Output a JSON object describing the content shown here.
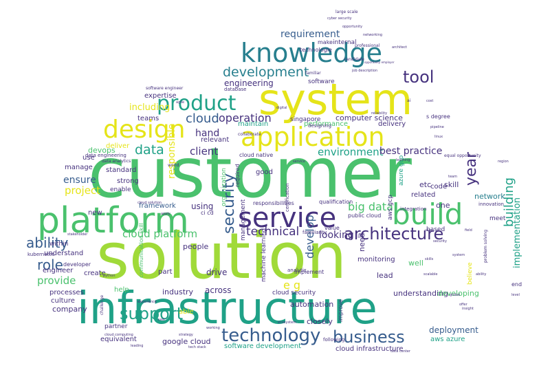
{
  "palette": {
    "lime": "#a0da39",
    "yellow": "#e5e419",
    "green": "#4ac16d",
    "mint": "#1fa187",
    "teal": "#277f8e",
    "blue": "#365c8d",
    "indigo": "#46327e",
    "purple": "#440154"
  },
  "words": [
    {
      "id": "customer",
      "text": "customer",
      "color": "green"
    },
    {
      "id": "solution",
      "text": "solution",
      "color": "lime"
    },
    {
      "id": "infrastructure",
      "text": "infrastructure",
      "color": "mint"
    },
    {
      "id": "platform",
      "text": "platform",
      "color": "green"
    },
    {
      "id": "system",
      "text": "system",
      "color": "yellow"
    },
    {
      "id": "knowledge",
      "text": "knowledge",
      "color": "teal"
    },
    {
      "id": "application",
      "text": "application",
      "color": "yellow"
    },
    {
      "id": "service",
      "text": "service",
      "color": "indigo"
    },
    {
      "id": "build",
      "text": "build",
      "color": "green"
    },
    {
      "id": "design",
      "text": "design",
      "color": "yellow"
    },
    {
      "id": "product",
      "text": "product",
      "color": "mint"
    },
    {
      "id": "technology",
      "text": "technology",
      "color": "blue"
    },
    {
      "id": "support",
      "text": "support",
      "color": "mint"
    },
    {
      "id": "business",
      "text": "business",
      "color": "blue"
    },
    {
      "id": "architecture",
      "text": "architecture",
      "color": "indigo"
    },
    {
      "id": "security",
      "text": "security",
      "color": "blue"
    },
    {
      "id": "ability",
      "text": "ability",
      "color": "blue"
    },
    {
      "id": "role",
      "text": "role",
      "color": "blue"
    },
    {
      "id": "development",
      "text": "development",
      "color": "teal"
    },
    {
      "id": "tool",
      "text": "tool",
      "color": "indigo"
    },
    {
      "id": "cloud",
      "text": "cloud",
      "color": "blue"
    },
    {
      "id": "data",
      "text": "data",
      "color": "mint"
    },
    {
      "id": "operation",
      "text": "operation",
      "color": "indigo"
    },
    {
      "id": "year",
      "text": "year",
      "color": "indigo"
    },
    {
      "id": "building",
      "text": "building",
      "color": "mint"
    },
    {
      "id": "technical",
      "text": "technical",
      "color": "indigo"
    },
    {
      "id": "requirement",
      "text": "requirement",
      "color": "blue"
    },
    {
      "id": "environment",
      "text": "environment",
      "color": "mint"
    },
    {
      "id": "best_practice",
      "text": "best practice",
      "color": "indigo"
    },
    {
      "id": "big_data",
      "text": "big data",
      "color": "green"
    },
    {
      "id": "ensure",
      "text": "ensure",
      "color": "blue"
    },
    {
      "id": "project",
      "text": "project",
      "color": "yellow"
    },
    {
      "id": "provide",
      "text": "provide",
      "color": "green"
    },
    {
      "id": "client",
      "text": "client",
      "color": "indigo"
    },
    {
      "id": "hand",
      "text": "hand",
      "color": "indigo"
    },
    {
      "id": "including",
      "text": "including",
      "color": "yellow"
    },
    {
      "id": "cloud_platform",
      "text": "cloud platform",
      "color": "green"
    },
    {
      "id": "e_g",
      "text": "e g",
      "color": "yellow"
    },
    {
      "id": "develop",
      "text": "develop",
      "color": "blue"
    },
    {
      "id": "responsible",
      "text": "responsible",
      "color": "yellow"
    },
    {
      "id": "engineering",
      "text": "engineering",
      "color": "indigo"
    },
    {
      "id": "computer_science",
      "text": "computer science",
      "color": "indigo"
    },
    {
      "id": "implementation",
      "text": "implementation",
      "color": "mint"
    },
    {
      "id": "drive",
      "text": "drive",
      "color": "indigo"
    },
    {
      "id": "software_development",
      "text": "software development",
      "color": "mint"
    },
    {
      "id": "deployment",
      "text": "deployment",
      "color": "blue"
    },
    {
      "id": "aws_azure",
      "text": "aws azure",
      "color": "mint"
    },
    {
      "id": "google_cloud",
      "text": "google cloud",
      "color": "indigo"
    },
    {
      "id": "cloud_infrastructure",
      "text": "cloud infrastructure",
      "color": "indigo"
    },
    {
      "id": "automation",
      "text": "automation",
      "color": "indigo"
    },
    {
      "id": "understanding",
      "text": "understanding",
      "color": "indigo"
    },
    {
      "id": "developing",
      "text": "developing",
      "color": "green"
    },
    {
      "id": "closely",
      "text": "closely",
      "color": "indigo"
    },
    {
      "id": "company",
      "text": "company",
      "color": "indigo"
    },
    {
      "id": "industry",
      "text": "industry",
      "color": "indigo"
    },
    {
      "id": "across",
      "text": "across",
      "color": "indigo"
    },
    {
      "id": "people",
      "text": "people",
      "color": "indigo"
    },
    {
      "id": "using",
      "text": "using",
      "color": "indigo"
    },
    {
      "id": "looking",
      "text": "looking",
      "color": "indigo"
    },
    {
      "id": "framework",
      "text": "framework",
      "color": "blue"
    },
    {
      "id": "manage",
      "text": "manage",
      "color": "indigo"
    },
    {
      "id": "teams",
      "text": "teams",
      "color": "indigo"
    },
    {
      "id": "devops",
      "text": "devops",
      "color": "green"
    },
    {
      "id": "deliver",
      "text": "deliver",
      "color": "yellow"
    },
    {
      "id": "new",
      "text": "new",
      "color": "indigo"
    },
    {
      "id": "expertise",
      "text": "expertise",
      "color": "indigo"
    },
    {
      "id": "maintain",
      "text": "maintain",
      "color": "mint"
    },
    {
      "id": "performance",
      "text": "performance",
      "color": "green"
    },
    {
      "id": "delivery",
      "text": "delivery",
      "color": "indigo"
    },
    {
      "id": "code",
      "text": "code",
      "color": "indigo"
    },
    {
      "id": "network",
      "text": "network",
      "color": "teal"
    },
    {
      "id": "etc",
      "text": "etc",
      "color": "indigo"
    },
    {
      "id": "skill",
      "text": "skill",
      "color": "indigo"
    },
    {
      "id": "one",
      "text": "one",
      "color": "indigo"
    },
    {
      "id": "related",
      "text": "related",
      "color": "indigo"
    },
    {
      "id": "monitoring",
      "text": "monitoring",
      "color": "indigo"
    },
    {
      "id": "lead",
      "text": "lead",
      "color": "indigo"
    },
    {
      "id": "need",
      "text": "need",
      "color": "indigo"
    },
    {
      "id": "well",
      "text": "well",
      "color": "green"
    },
    {
      "id": "good",
      "text": "good",
      "color": "indigo"
    },
    {
      "id": "culture",
      "text": "culture",
      "color": "indigo"
    },
    {
      "id": "processes",
      "text": "processes",
      "color": "indigo"
    },
    {
      "id": "engineer",
      "text": "engineer",
      "color": "indigo"
    },
    {
      "id": "understand",
      "text": "understand",
      "color": "indigo"
    },
    {
      "id": "within",
      "text": "within",
      "color": "indigo"
    },
    {
      "id": "help",
      "text": "help",
      "color": "green"
    },
    {
      "id": "create",
      "text": "create",
      "color": "indigo"
    },
    {
      "id": "equivalent",
      "text": "equivalent",
      "color": "indigo"
    },
    {
      "id": "partner",
      "text": "partner",
      "color": "indigo"
    },
    {
      "id": "part",
      "text": "part",
      "color": "indigo"
    },
    {
      "id": "able",
      "text": "able",
      "color": "yellow"
    },
    {
      "id": "strong",
      "text": "strong",
      "color": "indigo"
    },
    {
      "id": "standard",
      "text": "standard",
      "color": "indigo"
    },
    {
      "id": "enable",
      "text": "enable",
      "color": "indigo"
    },
    {
      "id": "use",
      "text": "use",
      "color": "indigo"
    },
    {
      "id": "relevant",
      "text": "relevant",
      "color": "indigo"
    },
    {
      "id": "singapore",
      "text": "singapore",
      "color": "indigo"
    },
    {
      "id": "software",
      "text": "software",
      "color": "indigo"
    },
    {
      "id": "internal",
      "text": "internal",
      "color": "indigo"
    },
    {
      "id": "make",
      "text": "make",
      "color": "indigo"
    },
    {
      "id": "technologie",
      "text": "technologie",
      "color": "indigo"
    },
    {
      "id": "based",
      "text": "based",
      "color": "indigo"
    },
    {
      "id": "meet",
      "text": "meet",
      "color": "indigo"
    },
    {
      "id": "end",
      "text": "end",
      "color": "indigo"
    },
    {
      "id": "believe",
      "text": "believe",
      "color": "yellow"
    },
    {
      "id": "value",
      "text": "value",
      "color": "indigo"
    },
    {
      "id": "qualification",
      "text": "qualification",
      "color": "indigo"
    },
    {
      "id": "management",
      "text": "management",
      "color": "indigo"
    },
    {
      "id": "public_cloud",
      "text": "public cloud",
      "color": "indigo"
    },
    {
      "id": "aws_gcp",
      "text": "aws gcp",
      "color": "indigo"
    },
    {
      "id": "azure_gcp",
      "text": "azure gcp",
      "color": "mint"
    },
    {
      "id": "cloud_security",
      "text": "cloud security",
      "color": "indigo"
    },
    {
      "id": "organization",
      "text": "organization",
      "color": "green"
    },
    {
      "id": "machine_learning",
      "text": "machine learning",
      "color": "indigo"
    },
    {
      "id": "cloud_native",
      "text": "cloud native",
      "color": "indigo"
    },
    {
      "id": "data_engineering",
      "text": "data engineering",
      "color": "indigo"
    },
    {
      "id": "kubernetes",
      "text": "kubernetes",
      "color": "indigo"
    },
    {
      "id": "communication_skill",
      "text": "communication skill",
      "color": "green"
    },
    {
      "id": "responsibilities",
      "text": "responsibilities",
      "color": "indigo"
    },
    {
      "id": "s_degree",
      "text": "s degree",
      "color": "indigo"
    },
    {
      "id": "ci_cd",
      "text": "ci cd",
      "color": "indigo"
    },
    {
      "id": "il",
      "text": "il",
      "color": "indigo"
    },
    {
      "id": "required",
      "text": "required",
      "color": "indigo"
    },
    {
      "id": "innovation",
      "text": "innovation",
      "color": "indigo"
    },
    {
      "id": "improve",
      "text": "improve",
      "color": "indigo"
    },
    {
      "id": "data_analytics",
      "text": "data analytics",
      "color": "indigo"
    },
    {
      "id": "developer",
      "text": "developer",
      "color": "indigo"
    },
    {
      "id": "analytic",
      "text": "analytic",
      "color": "indigo"
    },
    {
      "id": "implement",
      "text": "implement",
      "color": "indigo"
    },
    {
      "id": "following",
      "text": "following",
      "color": "indigo"
    },
    {
      "id": "designing",
      "text": "designing",
      "color": "indigo"
    },
    {
      "id": "database",
      "text": "database",
      "color": "indigo"
    },
    {
      "id": "familiarity",
      "text": "familiarity",
      "color": "indigo"
    },
    {
      "id": "certification",
      "text": "certification",
      "color": "indigo"
    },
    {
      "id": "integration",
      "text": "integration",
      "color": "indigo"
    },
    {
      "id": "large_scale",
      "text": "large scale",
      "color": "indigo"
    },
    {
      "id": "cyber_security",
      "text": "cyber security",
      "color": "indigo"
    },
    {
      "id": "architect",
      "text": "architect",
      "color": "indigo"
    },
    {
      "id": "professional",
      "text": "professional",
      "color": "indigo"
    },
    {
      "id": "candidate",
      "text": "candidate",
      "color": "indigo"
    },
    {
      "id": "collaborate",
      "text": "collaborate",
      "color": "indigo"
    },
    {
      "id": "familiar",
      "text": "familiar",
      "color": "indigo"
    },
    {
      "id": "world",
      "text": "world",
      "color": "indigo"
    },
    {
      "id": "challenge",
      "text": "challenge",
      "color": "indigo"
    },
    {
      "id": "problem_solving",
      "text": "problem solving",
      "color": "indigo"
    },
    {
      "id": "ability_small",
      "text": "ability",
      "color": "indigo"
    },
    {
      "id": "system_small",
      "text": "system",
      "color": "indigo"
    },
    {
      "id": "skills",
      "text": "skills",
      "color": "indigo"
    },
    {
      "id": "security_small",
      "text": "security",
      "color": "indigo"
    },
    {
      "id": "networking",
      "text": "networking",
      "color": "indigo"
    },
    {
      "id": "opportunity",
      "text": "opportunity",
      "color": "indigo"
    },
    {
      "id": "job_description",
      "text": "job description",
      "color": "indigo"
    },
    {
      "id": "cloud_solution",
      "text": "cloud solution",
      "color": "indigo"
    },
    {
      "id": "software_engineer",
      "text": "software engineer",
      "color": "indigo"
    },
    {
      "id": "equal_opportunity",
      "text": "equal opportunity",
      "color": "indigo"
    },
    {
      "id": "cloud_computing",
      "text": "cloud computing",
      "color": "indigo"
    },
    {
      "id": "data_center",
      "text": "data center",
      "color": "indigo"
    },
    {
      "id": "tech_stack",
      "text": "tech stack",
      "color": "indigo"
    },
    {
      "id": "user",
      "text": "user",
      "color": "indigo"
    },
    {
      "id": "global",
      "text": "global",
      "color": "indigo"
    },
    {
      "id": "offer",
      "text": "offer",
      "color": "indigo"
    },
    {
      "id": "sale",
      "text": "sale",
      "color": "indigo"
    },
    {
      "id": "level",
      "text": "level",
      "color": "indigo"
    },
    {
      "id": "field",
      "text": "field",
      "color": "indigo"
    },
    {
      "id": "apply",
      "text": "apply",
      "color": "indigo"
    },
    {
      "id": "insight",
      "text": "insight",
      "color": "indigo"
    },
    {
      "id": "strategy",
      "text": "strategy",
      "color": "indigo"
    },
    {
      "id": "working",
      "text": "working",
      "color": "indigo"
    },
    {
      "id": "learning",
      "text": "learning",
      "color": "indigo"
    },
    {
      "id": "service_small",
      "text": "service",
      "color": "indigo"
    },
    {
      "id": "digital",
      "text": "digital",
      "color": "indigo"
    },
    {
      "id": "cost",
      "text": "cost",
      "color": "indigo"
    },
    {
      "id": "leading",
      "text": "leading",
      "color": "indigo"
    },
    {
      "id": "experience",
      "text": "experience",
      "color": "indigo"
    },
    {
      "id": "agile",
      "text": "agile",
      "color": "indigo"
    },
    {
      "id": "python",
      "text": "python",
      "color": "indigo"
    },
    {
      "id": "linux",
      "text": "linux",
      "color": "indigo"
    },
    {
      "id": "team",
      "text": "team",
      "color": "indigo"
    },
    {
      "id": "scalable",
      "text": "scalable",
      "color": "indigo"
    },
    {
      "id": "reliability",
      "text": "reliability",
      "color": "indigo"
    },
    {
      "id": "stakeholder",
      "text": "stakeholder",
      "color": "indigo"
    },
    {
      "id": "opportunity_employer",
      "text": "opportunity employer",
      "color": "indigo"
    },
    {
      "id": "ecosystem",
      "text": "ecosystem",
      "color": "indigo"
    },
    {
      "id": "region",
      "text": "region",
      "color": "indigo"
    },
    {
      "id": "ai",
      "text": "ai",
      "color": "indigo"
    },
    {
      "id": "pipeline",
      "text": "pipeline",
      "color": "indigo"
    }
  ]
}
